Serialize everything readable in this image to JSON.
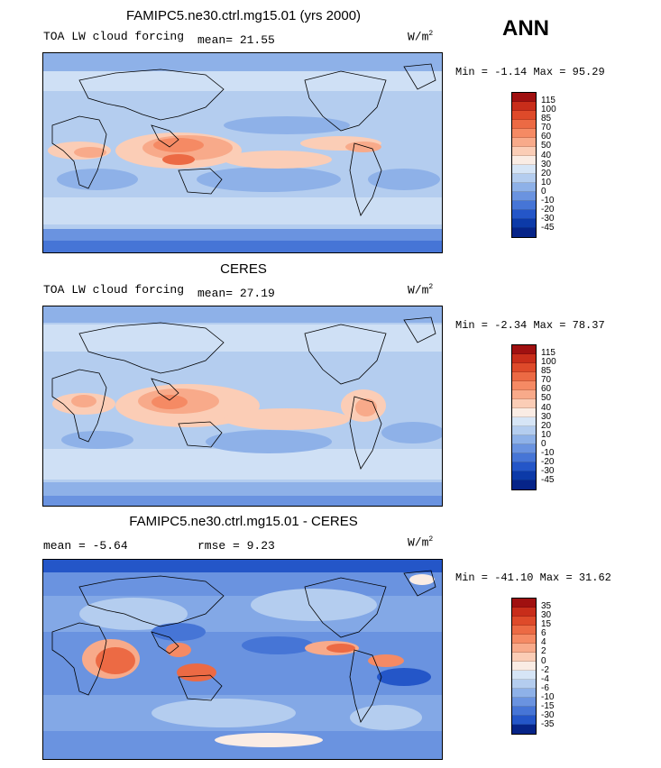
{
  "season": "ANN",
  "panels": [
    {
      "title": "FAMIPC5.ne30.ctrl.mg15.01 (yrs 2000)",
      "left_label": "TOA LW cloud forcing",
      "stat_label": "mean=",
      "stat_value": "21.55",
      "units": "W/m",
      "units_sup": "2",
      "min_label": "Min =",
      "min_value": "-1.14",
      "max_label": "Max =",
      "max_value": "95.29",
      "levels": [
        "115",
        "100",
        "85",
        "70",
        "60",
        "50",
        "40",
        "30",
        "20",
        "10",
        "0",
        "-10",
        "-20",
        "-30",
        "-45"
      ],
      "colors": [
        "#a01010",
        "#c82d1a",
        "#de4a2a",
        "#ec6a44",
        "#f58a64",
        "#f8aa8a",
        "#fbcdb6",
        "#faece4",
        "#d6e5f6",
        "#b4cdef",
        "#8eb1e8",
        "#6a93e0",
        "#4675d6",
        "#2456c8",
        "#0c3aa8",
        "#062488"
      ]
    },
    {
      "title": "CERES",
      "left_label": "TOA LW cloud forcing",
      "stat_label": "mean=",
      "stat_value": "27.19",
      "units": "W/m",
      "units_sup": "2",
      "min_label": "Min =",
      "min_value": "-2.34",
      "max_label": "Max =",
      "max_value": "78.37",
      "levels": [
        "115",
        "100",
        "85",
        "70",
        "60",
        "50",
        "40",
        "30",
        "20",
        "10",
        "0",
        "-10",
        "-20",
        "-30",
        "-45"
      ],
      "colors": [
        "#a01010",
        "#c82d1a",
        "#de4a2a",
        "#ec6a44",
        "#f58a64",
        "#f8aa8a",
        "#fbcdb6",
        "#faece4",
        "#d6e5f6",
        "#b4cdef",
        "#8eb1e8",
        "#6a93e0",
        "#4675d6",
        "#2456c8",
        "#0c3aa8",
        "#062488"
      ]
    },
    {
      "title": "FAMIPC5.ne30.ctrl.mg15.01 - CERES",
      "left_label": "mean =",
      "left_value": "-5.64",
      "stat_label": "rmse =",
      "stat_value": "9.23",
      "units": "W/m",
      "units_sup": "2",
      "min_label": "Min =",
      "min_value": "-41.10",
      "max_label": "Max =",
      "max_value": "31.62",
      "levels": [
        "35",
        "30",
        "15",
        "6",
        "4",
        "2",
        "0",
        "-2",
        "-4",
        "-6",
        "-10",
        "-15",
        "-30",
        "-35"
      ],
      "colors": [
        "#a01010",
        "#c82d1a",
        "#de4a2a",
        "#ec6a44",
        "#f58a64",
        "#f8aa8a",
        "#fbcdb6",
        "#faece4",
        "#d6e5f6",
        "#b4cdef",
        "#8eb1e8",
        "#6a93e0",
        "#4675d6",
        "#2456c8",
        "#062488"
      ]
    }
  ]
}
